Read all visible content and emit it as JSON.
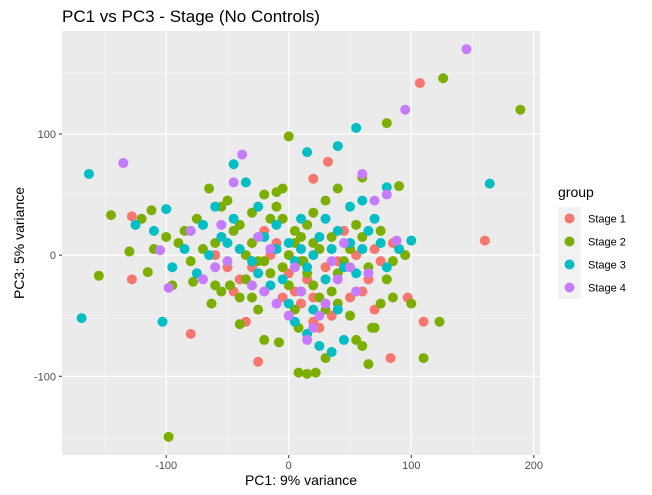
{
  "chart_data": {
    "type": "scatter",
    "title": "PC1 vs PC3 - Stage (No Controls)",
    "xlabel": "PC1: 9% variance",
    "ylabel": "PC3: 5% variance",
    "xlim": [
      -185,
      205
    ],
    "ylim": [
      -165,
      185
    ],
    "xticks": [
      -100,
      0,
      100,
      200
    ],
    "yticks": [
      -100,
      0,
      100
    ],
    "grid": true,
    "legend": {
      "title": "group",
      "placement": "right"
    },
    "series": [
      {
        "name": "Stage 1",
        "color": "#F8766D",
        "points": [
          [
            107,
            142
          ],
          [
            160,
            12
          ],
          [
            -128,
            32
          ],
          [
            -128,
            -20
          ],
          [
            -80,
            -65
          ],
          [
            -25,
            -88
          ],
          [
            83,
            -85
          ],
          [
            110,
            -55
          ],
          [
            97,
            -35
          ],
          [
            32,
            77
          ],
          [
            20,
            63
          ],
          [
            -60,
            0
          ],
          [
            -40,
            -20
          ],
          [
            -30,
            -10
          ],
          [
            -15,
            0
          ],
          [
            -5,
            -35
          ],
          [
            5,
            -30
          ],
          [
            10,
            -40
          ],
          [
            15,
            -20
          ],
          [
            20,
            -55
          ],
          [
            25,
            -60
          ],
          [
            30,
            -10
          ],
          [
            40,
            -5
          ],
          [
            45,
            20
          ],
          [
            55,
            0
          ],
          [
            60,
            -30
          ],
          [
            70,
            -45
          ],
          [
            75,
            -5
          ],
          [
            85,
            10
          ],
          [
            -20,
            20
          ],
          [
            -10,
            10
          ],
          [
            0,
            -15
          ],
          [
            20,
            -35
          ],
          [
            35,
            -50
          ],
          [
            -50,
            -10
          ],
          [
            -45,
            -30
          ],
          [
            -35,
            -55
          ],
          [
            50,
            -35
          ],
          [
            65,
            -20
          ],
          [
            70,
            5
          ]
        ]
      },
      {
        "name": "Stage 2",
        "color": "#7CAE00",
        "points": [
          [
            126,
            146
          ],
          [
            189,
            120
          ],
          [
            80,
            109
          ],
          [
            0,
            98
          ],
          [
            -145,
            33
          ],
          [
            -155,
            -17
          ],
          [
            -112,
            37
          ],
          [
            -115,
            -14
          ],
          [
            -98,
            -150
          ],
          [
            -78,
            -22
          ],
          [
            -63,
            -40
          ],
          [
            -55,
            -30
          ],
          [
            -48,
            -25
          ],
          [
            -40,
            -57
          ],
          [
            -35,
            -20
          ],
          [
            -30,
            -35
          ],
          [
            -25,
            -45
          ],
          [
            -20,
            -5
          ],
          [
            -15,
            -15
          ],
          [
            -8,
            -72
          ],
          [
            -5,
            -10
          ],
          [
            0,
            -25
          ],
          [
            5,
            -45
          ],
          [
            8,
            -60
          ],
          [
            12,
            -5
          ],
          [
            15,
            -15
          ],
          [
            20,
            -25
          ],
          [
            25,
            -35
          ],
          [
            30,
            -45
          ],
          [
            35,
            -30
          ],
          [
            40,
            -40
          ],
          [
            45,
            -10
          ],
          [
            50,
            -50
          ],
          [
            55,
            -70
          ],
          [
            60,
            -75
          ],
          [
            65,
            -90
          ],
          [
            70,
            -60
          ],
          [
            75,
            -40
          ],
          [
            80,
            -20
          ],
          [
            85,
            -35
          ],
          [
            100,
            -40
          ],
          [
            110,
            -85
          ],
          [
            123,
            -55
          ],
          [
            90,
            57
          ],
          [
            60,
            64
          ],
          [
            40,
            55
          ],
          [
            30,
            45
          ],
          [
            20,
            35
          ],
          [
            10,
            15
          ],
          [
            5,
            20
          ],
          [
            -5,
            30
          ],
          [
            -10,
            40
          ],
          [
            -20,
            50
          ],
          [
            -30,
            35
          ],
          [
            -40,
            25
          ],
          [
            -50,
            45
          ],
          [
            -60,
            10
          ],
          [
            -70,
            5
          ],
          [
            -80,
            -5
          ],
          [
            -90,
            10
          ],
          [
            -100,
            15
          ],
          [
            -120,
            30
          ],
          [
            -130,
            3
          ],
          [
            -110,
            5
          ],
          [
            -95,
            -25
          ],
          [
            -85,
            20
          ],
          [
            -75,
            30
          ],
          [
            -65,
            55
          ],
          [
            -55,
            40
          ],
          [
            -45,
            20
          ],
          [
            -35,
            0
          ],
          [
            -25,
            -5
          ],
          [
            -15,
            30
          ],
          [
            -5,
            55
          ],
          [
            5,
            10
          ],
          [
            15,
            25
          ],
          [
            25,
            5
          ],
          [
            35,
            15
          ],
          [
            45,
            -5
          ],
          [
            55,
            25
          ],
          [
            65,
            -10
          ],
          [
            75,
            20
          ],
          [
            85,
            -5
          ],
          [
            95,
            0
          ],
          [
            8,
            -97
          ],
          [
            15,
            -98
          ],
          [
            22,
            -97
          ],
          [
            -10,
            52
          ],
          [
            30,
            -85
          ],
          [
            -20,
            -70
          ],
          [
            68,
            -60
          ],
          [
            -60,
            -25
          ],
          [
            -40,
            -35
          ],
          [
            0,
            0
          ],
          [
            10,
            -5
          ],
          [
            20,
            10
          ],
          [
            -30,
            10
          ],
          [
            40,
            -15
          ],
          [
            50,
            5
          ],
          [
            60,
            15
          ]
        ]
      },
      {
        "name": "Stage 3",
        "color": "#00BFC4",
        "points": [
          [
            -163,
            67
          ],
          [
            -169,
            -52
          ],
          [
            -103,
            -55
          ],
          [
            164,
            59
          ],
          [
            80,
            56
          ],
          [
            55,
            105
          ],
          [
            40,
            90
          ],
          [
            15,
            85
          ],
          [
            -45,
            75
          ],
          [
            -60,
            40
          ],
          [
            -80,
            20
          ],
          [
            -95,
            -10
          ],
          [
            -110,
            20
          ],
          [
            -125,
            25
          ],
          [
            -100,
            38
          ],
          [
            -70,
            25
          ],
          [
            -50,
            10
          ],
          [
            -40,
            5
          ],
          [
            -30,
            -5
          ],
          [
            -20,
            15
          ],
          [
            -10,
            5
          ],
          [
            0,
            10
          ],
          [
            5,
            -5
          ],
          [
            10,
            5
          ],
          [
            15,
            -10
          ],
          [
            20,
            0
          ],
          [
            25,
            15
          ],
          [
            30,
            -20
          ],
          [
            35,
            5
          ],
          [
            40,
            20
          ],
          [
            45,
            -10
          ],
          [
            50,
            10
          ],
          [
            55,
            -15
          ],
          [
            60,
            5
          ],
          [
            65,
            20
          ],
          [
            70,
            30
          ],
          [
            75,
            10
          ],
          [
            80,
            -10
          ],
          [
            90,
            5
          ],
          [
            100,
            12
          ],
          [
            60,
            45
          ],
          [
            50,
            40
          ],
          [
            30,
            30
          ],
          [
            10,
            30
          ],
          [
            -10,
            25
          ],
          [
            -25,
            40
          ],
          [
            -35,
            60
          ],
          [
            -45,
            30
          ],
          [
            -55,
            15
          ],
          [
            -65,
            0
          ],
          [
            -75,
            -15
          ],
          [
            -85,
            5
          ],
          [
            5,
            -55
          ],
          [
            15,
            -65
          ],
          [
            25,
            -75
          ],
          [
            35,
            -80
          ],
          [
            45,
            -70
          ],
          [
            -5,
            -20
          ],
          [
            -15,
            -25
          ],
          [
            -25,
            -15
          ],
          [
            20,
            -45
          ],
          [
            10,
            -30
          ],
          [
            0,
            -40
          ],
          [
            40,
            -45
          ]
        ]
      },
      {
        "name": "Stage 4",
        "color": "#C77CFF",
        "points": [
          [
            145,
            170
          ],
          [
            95,
            120
          ],
          [
            -135,
            76
          ],
          [
            -105,
            4
          ],
          [
            -98,
            -27
          ],
          [
            -55,
            25
          ],
          [
            -45,
            60
          ],
          [
            -38,
            83
          ],
          [
            -20,
            -30
          ],
          [
            -10,
            -40
          ],
          [
            0,
            -50
          ],
          [
            10,
            -30
          ],
          [
            20,
            -60
          ],
          [
            30,
            -40
          ],
          [
            40,
            -20
          ],
          [
            50,
            -10
          ],
          [
            60,
            67
          ],
          [
            70,
            45
          ],
          [
            80,
            50
          ],
          [
            88,
            12
          ],
          [
            -60,
            -10
          ],
          [
            -70,
            -20
          ],
          [
            -80,
            20
          ],
          [
            -50,
            -5
          ],
          [
            -30,
            -25
          ],
          [
            15,
            -70
          ],
          [
            25,
            -50
          ],
          [
            35,
            -5
          ],
          [
            45,
            10
          ],
          [
            55,
            -30
          ],
          [
            65,
            -15
          ],
          [
            -25,
            15
          ],
          [
            -15,
            5
          ],
          [
            5,
            -10
          ]
        ]
      }
    ]
  }
}
